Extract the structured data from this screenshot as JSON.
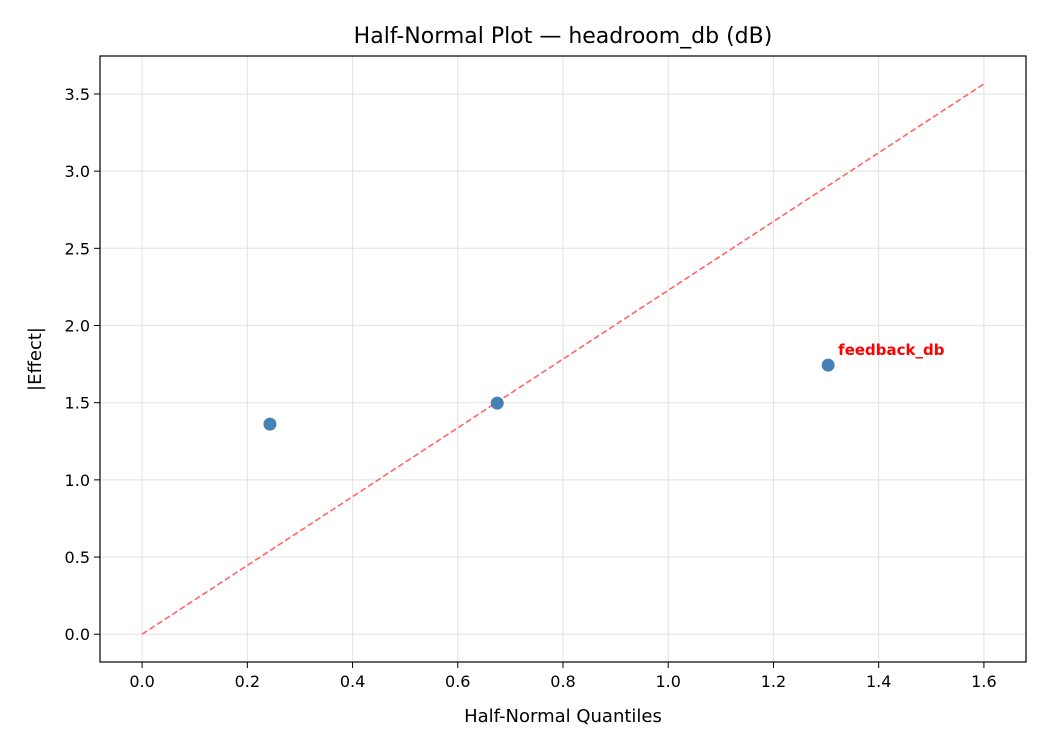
{
  "chart_data": {
    "type": "scatter",
    "title": "Half-Normal Plot — headroom_db (dB)",
    "xlabel": "Half-Normal Quantiles",
    "ylabel": "|Effect|",
    "xlim": [
      -0.08,
      1.68
    ],
    "ylim": [
      -0.18,
      3.746
    ],
    "xticks": [
      0.0,
      0.2,
      0.4,
      0.6,
      0.8,
      1.0,
      1.2,
      1.4,
      1.6
    ],
    "xtick_labels": [
      "0.0",
      "0.2",
      "0.4",
      "0.6",
      "0.8",
      "1.0",
      "1.2",
      "1.4",
      "1.6"
    ],
    "yticks": [
      0.0,
      0.5,
      1.0,
      1.5,
      2.0,
      2.5,
      3.0,
      3.5
    ],
    "ytick_labels": [
      "0.0",
      "0.5",
      "1.0",
      "1.5",
      "2.0",
      "2.5",
      "3.0",
      "3.5"
    ],
    "grid": true,
    "points": [
      {
        "x": 0.243,
        "y": 1.361,
        "label": ""
      },
      {
        "x": 0.675,
        "y": 1.497,
        "label": ""
      },
      {
        "x": 1.304,
        "y": 1.743,
        "label": "feedback_db"
      }
    ],
    "reference_line": {
      "x": [
        0.0,
        1.6
      ],
      "y": [
        0.0,
        3.565
      ],
      "style": "dashed"
    },
    "colors": {
      "points": "#4682b4",
      "line": "#ff6666",
      "annotation": "#ff0000",
      "grid": "#e6e6e6"
    }
  }
}
